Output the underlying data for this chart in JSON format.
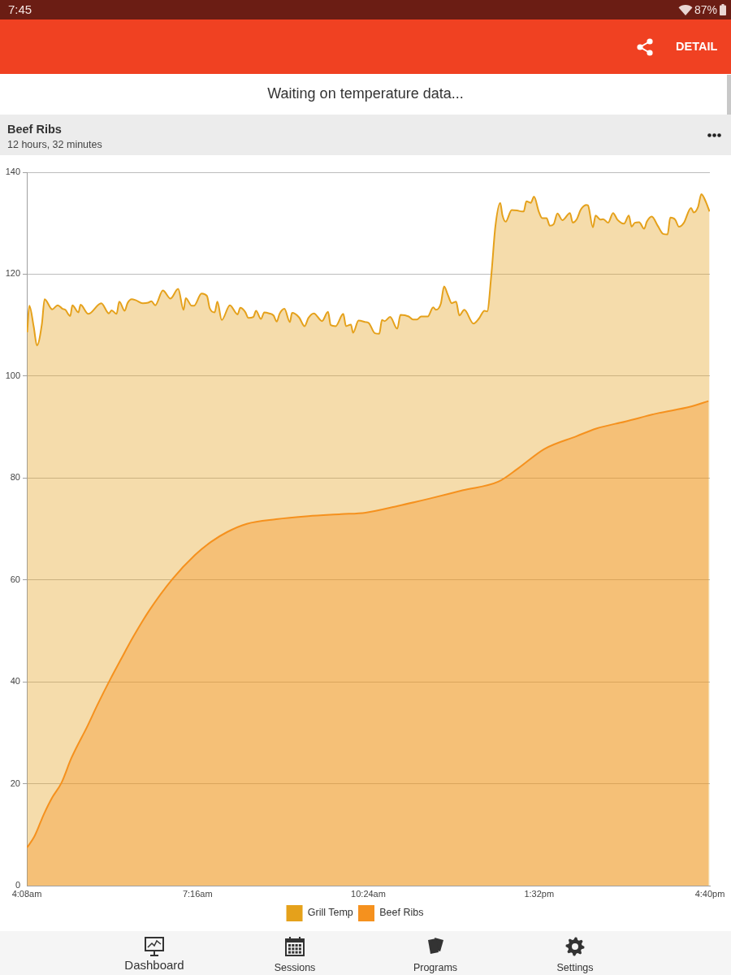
{
  "chart_data": {
    "type": "area",
    "title": "Beef Ribs",
    "subtitle": "12 hours, 32 minutes",
    "annotations": [
      "7:45",
      "87%",
      "DETAIL",
      "Waiting on temperature data...",
      "Dashboard",
      "Sessions",
      "Programs",
      "Settings"
    ],
    "series": [
      {
        "name": "Grill Temp",
        "color": "#e5a11b",
        "x": [
          4.14,
          4.18,
          4.26,
          4.32,
          4.41,
          4.46,
          4.6,
          4.7,
          4.79,
          4.84,
          4.93,
          4.97,
          5.08,
          5.12,
          5.26,
          5.5,
          5.64,
          5.69,
          5.78,
          5.83,
          5.93,
          5.98,
          6.06,
          6.13,
          6.26,
          6.36,
          6.42,
          6.49,
          6.63,
          6.77,
          6.91,
          7.01,
          7.05,
          7.16,
          7.2,
          7.34,
          7.44,
          7.49,
          7.58,
          7.63,
          7.71,
          7.86,
          8.0,
          8.05,
          8.14,
          8.2,
          8.29,
          8.34,
          8.43,
          8.49,
          8.58,
          8.66,
          8.72,
          8.77,
          8.86,
          8.96,
          9.0,
          9.13,
          9.23,
          9.3,
          9.4,
          9.55,
          9.66,
          9.71,
          9.8,
          9.94,
          9.99,
          10.08,
          10.12,
          10.22,
          10.35,
          10.41,
          10.52,
          10.6,
          10.65,
          10.7,
          10.8,
          10.93,
          10.99,
          11.14,
          11.22,
          11.29,
          11.37,
          11.49,
          11.59,
          11.64,
          11.73,
          11.79,
          11.86,
          11.93,
          12.01,
          12.07,
          12.16,
          12.33,
          12.43,
          12.53,
          12.58,
          12.66,
          12.73,
          12.82,
          12.86,
          12.92,
          13.03,
          13.13,
          13.22,
          13.25,
          13.3,
          13.38,
          13.44,
          13.53,
          13.59,
          13.67,
          13.73,
          13.8,
          13.87,
          13.96,
          14.1,
          14.15,
          14.22,
          14.3,
          14.4,
          14.43,
          14.52,
          14.57,
          14.66,
          14.71,
          14.8,
          14.89,
          14.97,
          15.09,
          15.18,
          15.23,
          15.29,
          15.37,
          15.46,
          15.51,
          15.6,
          15.71,
          15.81,
          15.89,
          15.94,
          16.03,
          16.1,
          16.19,
          16.32,
          16.37,
          16.45,
          16.51,
          16.6,
          16.66
        ],
        "values": [
          108.6,
          113.8,
          109.7,
          106.0,
          110.2,
          115.1,
          113.1,
          113.9,
          113.2,
          113.0,
          111.8,
          113.9,
          112.5,
          114.0,
          112.2,
          114.3,
          112.3,
          112.9,
          112.2,
          114.6,
          112.8,
          114.3,
          115.1,
          114.9,
          114.3,
          114.4,
          114.7,
          113.9,
          116.8,
          115.2,
          117.1,
          113.0,
          115.3,
          113.8,
          113.8,
          116.2,
          115.7,
          113.3,
          112.5,
          114.6,
          111.0,
          113.9,
          112.1,
          113.4,
          112.6,
          111.4,
          111.6,
          112.8,
          111.2,
          112.5,
          112.3,
          111.9,
          110.7,
          112.2,
          113.2,
          110.6,
          112.4,
          111.5,
          109.8,
          111.4,
          112.3,
          110.8,
          112.6,
          110.0,
          109.8,
          112.2,
          109.8,
          110.1,
          108.5,
          110.9,
          110.6,
          110.4,
          108.4,
          108.3,
          111.0,
          110.8,
          111.6,
          109.3,
          112.0,
          111.7,
          111.1,
          111.1,
          111.7,
          111.7,
          113.5,
          113.0,
          114.2,
          117.6,
          115.9,
          114.3,
          114.6,
          111.9,
          113.0,
          110.3,
          111.3,
          112.8,
          112.7,
          120.3,
          129.3,
          134.0,
          131.6,
          130.3,
          132.6,
          132.5,
          132.3,
          132.3,
          134.3,
          134.0,
          135.2,
          132.2,
          131.0,
          131.0,
          129.5,
          129.8,
          131.9,
          130.6,
          132.0,
          130.1,
          130.7,
          132.7,
          133.6,
          133.5,
          129.2,
          131.5,
          130.7,
          130.8,
          130.1,
          132.0,
          130.7,
          129.9,
          131.5,
          129.3,
          130.1,
          130.2,
          128.9,
          130.3,
          131.3,
          129.5,
          127.9,
          127.8,
          131.1,
          130.7,
          129.3,
          130.1,
          133.0,
          132.1,
          133.2,
          135.7,
          134.0,
          132.3
        ]
      },
      {
        "name": "Beef Ribs",
        "color": "#f5911e",
        "x": [
          4.14,
          4.27,
          4.45,
          4.6,
          4.77,
          4.95,
          5.25,
          5.43,
          5.67,
          5.85,
          6.09,
          6.38,
          6.8,
          7.22,
          7.52,
          7.81,
          8.17,
          8.71,
          9.3,
          9.9,
          10.35,
          10.94,
          11.54,
          12.14,
          12.79,
          13.15,
          13.63,
          14.22,
          14.58,
          15.12,
          15.71,
          16.31,
          16.64
        ],
        "values": [
          7.5,
          9.6,
          14.1,
          17.3,
          20.2,
          25.0,
          31.4,
          35.5,
          40.6,
          44.2,
          48.9,
          54.0,
          60.1,
          64.9,
          67.5,
          69.4,
          71.0,
          71.9,
          72.5,
          72.9,
          73.2,
          74.5,
          76.0,
          77.6,
          79.3,
          81.9,
          85.7,
          88.2,
          89.7,
          91.1,
          92.7,
          94.0,
          95.1
        ]
      }
    ],
    "xlim": [
      4.133333,
      16.666667
    ],
    "xticks": [
      {
        "value": 4.133333,
        "label": "4:08am"
      },
      {
        "value": 7.266667,
        "label": "7:16am"
      },
      {
        "value": 10.4,
        "label": "10:24am"
      },
      {
        "value": 13.533333,
        "label": "1:32pm"
      },
      {
        "value": 16.666667,
        "label": "4:40pm"
      }
    ],
    "ylim": [
      0,
      140
    ],
    "yticks": [
      0,
      20,
      40,
      60,
      80,
      100,
      120,
      140
    ],
    "grid": "y",
    "legend": "bottom"
  }
}
